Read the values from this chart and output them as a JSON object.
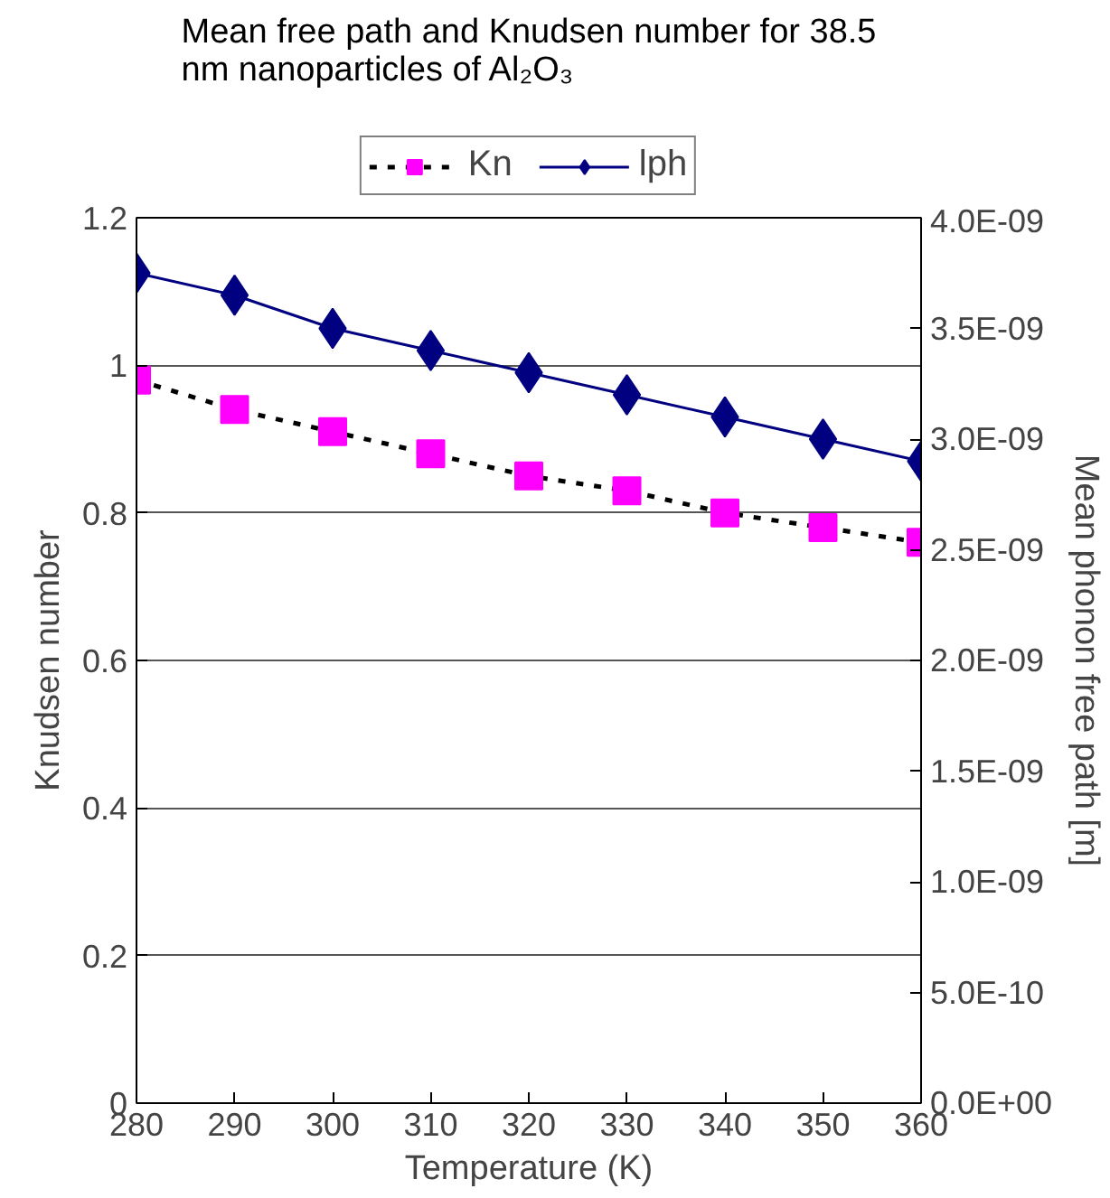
{
  "chart_data": {
    "type": "line",
    "title": "Mean free path and Knudsen number for 38.5 nm nanoparticles of Al₂O₃",
    "xlabel": "Temperature (K)",
    "ylabel": "Knudsen number",
    "y2label": "Mean phonon free path [m]",
    "x": [
      280,
      290,
      300,
      310,
      320,
      330,
      340,
      350,
      360
    ],
    "series": [
      {
        "name": "Kn",
        "color": "#ff00ff",
        "marker": "square",
        "line_style": "dashed",
        "values": [
          0.98,
          0.94,
          0.91,
          0.88,
          0.85,
          0.83,
          0.8,
          0.78,
          0.76
        ]
      },
      {
        "name": "lph",
        "color": "#000080",
        "marker": "diamond",
        "line_style": "solid",
        "axis": "y2",
        "values": [
          3.75e-09,
          3.65e-09,
          3.5e-09,
          3.4e-09,
          3.3e-09,
          3.2e-09,
          3.1e-09,
          3e-09,
          2.9e-09
        ]
      }
    ],
    "xlim": [
      280,
      360
    ],
    "xticks": [
      280,
      290,
      300,
      310,
      320,
      330,
      340,
      350,
      360
    ],
    "ylim": [
      0,
      1.2
    ],
    "yticks": [
      0,
      0.2,
      0.4,
      0.6,
      0.8,
      1,
      1.2
    ],
    "y2lim": [
      0,
      4e-09
    ],
    "y2ticks": [
      {
        "value": 0,
        "label": "0.0E+00"
      },
      {
        "value": 5e-10,
        "label": "5.0E-10"
      },
      {
        "value": 1e-09,
        "label": "1.0E-09"
      },
      {
        "value": 1.5e-09,
        "label": "1.5E-09"
      },
      {
        "value": 2e-09,
        "label": "2.0E-09"
      },
      {
        "value": 2.5e-09,
        "label": "2.5E-09"
      },
      {
        "value": 3e-09,
        "label": "3.0E-09"
      },
      {
        "value": 3.5e-09,
        "label": "3.5E-09"
      },
      {
        "value": 4e-09,
        "label": "4.0E-09"
      }
    ],
    "grid": "y",
    "legend": "top"
  }
}
